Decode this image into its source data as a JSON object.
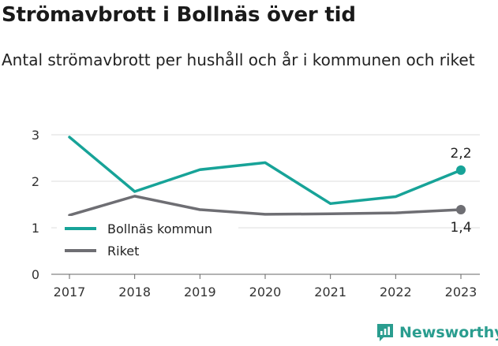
{
  "header": {
    "title": "Strömavbrott i Bollnäs över tid",
    "subtitle": "Antal strömavbrott per hushåll och år i kommunen och riket"
  },
  "brand": {
    "name": "Newsworthy",
    "icon": "newsworthy-logo-icon",
    "color": "#2a9d8f"
  },
  "chart_data": {
    "type": "line",
    "title": "Strömavbrott i Bollnäs över tid",
    "subtitle": "Antal strömavbrott per hushåll och år i kommunen och riket",
    "x": [
      2017,
      2018,
      2019,
      2020,
      2021,
      2022,
      2023
    ],
    "ylim": [
      0,
      3
    ],
    "yticks": [
      0,
      1,
      2,
      3
    ],
    "grid": "horizontal",
    "legend": "inside-left",
    "series": [
      {
        "name": "Bollnäs kommun",
        "color": "#17a398",
        "values": [
          2.95,
          1.78,
          2.25,
          2.4,
          1.52,
          1.67,
          2.24
        ],
        "end_label": "2,2"
      },
      {
        "name": "Riket",
        "color": "#6e6e73",
        "values": [
          1.27,
          1.68,
          1.39,
          1.29,
          1.3,
          1.32,
          1.39
        ],
        "end_label": "1,4"
      }
    ]
  }
}
